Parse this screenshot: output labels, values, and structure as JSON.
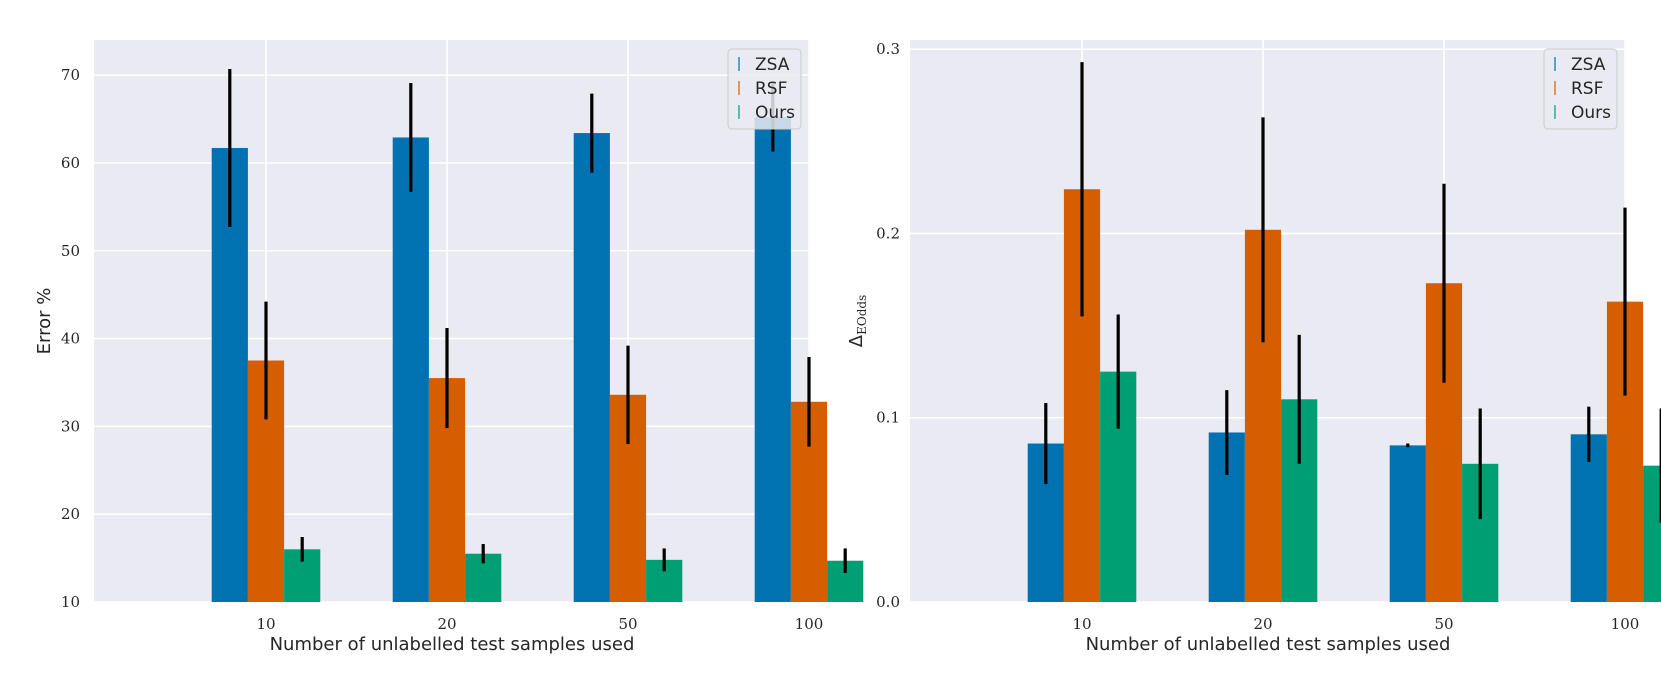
{
  "colors": {
    "ZSA": "#0072b2",
    "RSF": "#d55e00",
    "Ours": "#009e73",
    "plot_bg": "#eaeaf2",
    "grid": "#ffffff",
    "error_bar": "#000000"
  },
  "chart_data": [
    {
      "type": "bar",
      "title": "",
      "xlabel": "Number of unlabelled test samples used",
      "ylabel": "Error %",
      "ylim": [
        10,
        74
      ],
      "yticks": [
        10,
        20,
        30,
        40,
        50,
        60,
        70
      ],
      "ytick_labels": [
        "10",
        "20",
        "30",
        "40",
        "50",
        "60",
        "70"
      ],
      "categories": [
        "10",
        "20",
        "50",
        "100"
      ],
      "legend_position": "top-right",
      "series": [
        {
          "name": "ZSA",
          "values": [
            61.7,
            62.9,
            63.4,
            65.2
          ],
          "errors": [
            9.0,
            6.2,
            4.5,
            3.9
          ]
        },
        {
          "name": "RSF",
          "values": [
            37.5,
            35.5,
            33.6,
            32.8
          ],
          "errors": [
            6.7,
            5.7,
            5.6,
            5.1
          ]
        },
        {
          "name": "Ours",
          "values": [
            16.0,
            15.5,
            14.8,
            14.7
          ],
          "errors": [
            1.4,
            1.1,
            1.3,
            1.4
          ]
        }
      ]
    },
    {
      "type": "bar",
      "title": "",
      "xlabel": "Number of unlabelled test samples used",
      "ylabel": "Δ",
      "ylabel_sub": "EOdds",
      "ylim": [
        0,
        0.305
      ],
      "yticks": [
        0,
        0.1,
        0.2,
        0.3
      ],
      "ytick_labels": [
        "0.0",
        "0.1",
        "0.2",
        "0.3"
      ],
      "categories": [
        "10",
        "20",
        "50",
        "100"
      ],
      "legend_position": "top-right",
      "series": [
        {
          "name": "ZSA",
          "values": [
            0.086,
            0.092,
            0.085,
            0.091
          ],
          "errors": [
            0.022,
            0.023,
            0.001,
            0.015
          ]
        },
        {
          "name": "RSF",
          "values": [
            0.224,
            0.202,
            0.173,
            0.163
          ],
          "errors": [
            0.069,
            0.061,
            0.054,
            0.051
          ]
        },
        {
          "name": "Ours",
          "values": [
            0.125,
            0.11,
            0.075,
            0.074
          ],
          "errors": [
            0.031,
            0.035,
            0.03,
            0.031
          ]
        }
      ]
    }
  ]
}
